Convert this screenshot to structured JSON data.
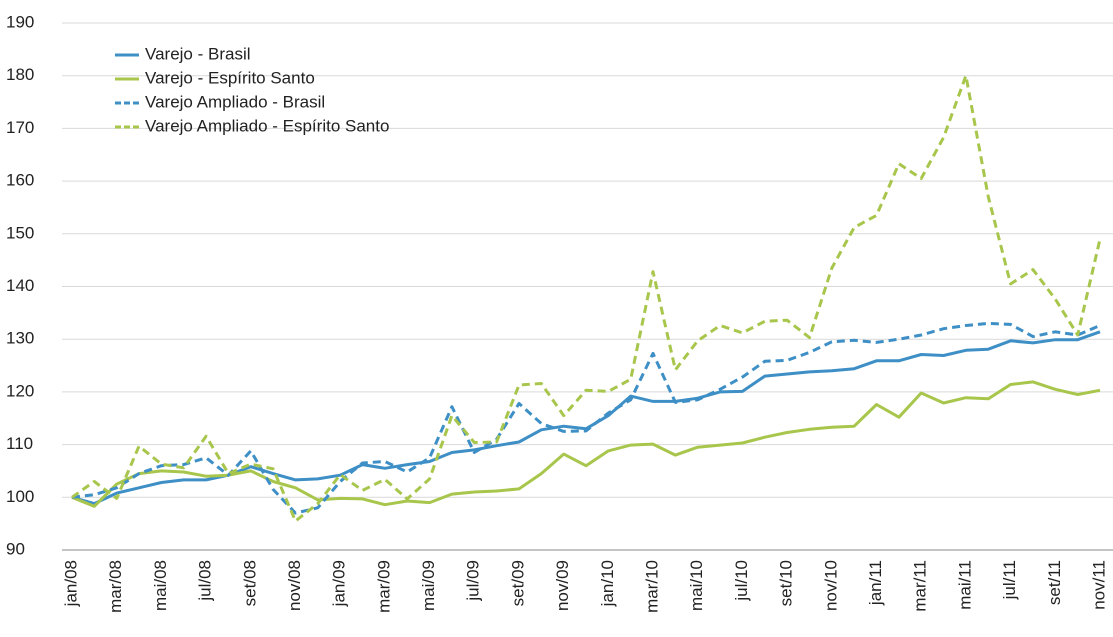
{
  "chart_data": {
    "type": "line",
    "categories": [
      "jan/08",
      null,
      "mar/08",
      null,
      "mai/08",
      null,
      "jul/08",
      null,
      "set/08",
      null,
      "nov/08",
      null,
      "jan/09",
      null,
      "mar/09",
      null,
      "mai/09",
      null,
      "jul/09",
      null,
      "set/09",
      null,
      "nov/09",
      null,
      "jan/10",
      null,
      "mar/10",
      null,
      "mai/10",
      null,
      "jul/10",
      null,
      "set/10",
      null,
      "nov/10",
      null,
      "jan/11",
      null,
      "mar/11",
      null,
      "mai/11",
      null,
      "jul/11",
      null,
      "set/11",
      null,
      "nov/11"
    ],
    "series": [
      {
        "name": "Varejo - Brasil",
        "color": "#3d8fc6",
        "line_style": "solid",
        "values": [
          100,
          98.8,
          100.8,
          101.8,
          102.8,
          103.3,
          103.3,
          104.2,
          105.8,
          104.5,
          103.3,
          103.5,
          104.2,
          106.2,
          105.5,
          106.2,
          106.8,
          108.5,
          109,
          109.8,
          110.5,
          112.8,
          113.5,
          113,
          115.5,
          119.2,
          118.2,
          118.2,
          118.8,
          120,
          120.1,
          123,
          123.4,
          123.8,
          124,
          124.4,
          125.9,
          125.9,
          127.1,
          126.9,
          127.9,
          128.1,
          129.7,
          129.3,
          129.9,
          129.9,
          131.4
        ]
      },
      {
        "name": "Varejo - Espírito Santo",
        "color": "#a8c64c",
        "line_style": "solid",
        "values": [
          100,
          98.3,
          102.5,
          104.5,
          105,
          104.8,
          104,
          104.2,
          105,
          103,
          101.8,
          99.5,
          99.8,
          99.7,
          98.6,
          99.3,
          99,
          100.6,
          101,
          101.2,
          101.6,
          104.5,
          108.2,
          106,
          108.8,
          109.9,
          110.1,
          108,
          109.5,
          109.9,
          110.3,
          111.4,
          112.3,
          112.9,
          113.3,
          113.5,
          117.6,
          115.2,
          119.8,
          117.9,
          118.9,
          118.7,
          121.4,
          121.9,
          120.5,
          119.5,
          120.3
        ]
      },
      {
        "name": "Varejo Ampliado - Brasil",
        "color": "#3d8fc6",
        "line_style": "dashed",
        "values": [
          100,
          100.5,
          101.8,
          104.5,
          106,
          106.2,
          107.5,
          104.2,
          108.8,
          101.5,
          97,
          98,
          103,
          106.5,
          106.8,
          104.8,
          107.5,
          117.2,
          108.5,
          111,
          117.8,
          114,
          112.5,
          112.6,
          116,
          118.5,
          127.3,
          118,
          118.5,
          120.5,
          122.8,
          125.8,
          126,
          127.5,
          129.5,
          129.8,
          129.4,
          130,
          130.8,
          132,
          132.6,
          133,
          132.8,
          130.5,
          131.4,
          130.8,
          132.6
        ]
      },
      {
        "name": "Varejo Ampliado - Espírito Santo",
        "color": "#a8c64c",
        "line_style": "dashed",
        "values": [
          100,
          103,
          99.8,
          109.7,
          106.3,
          105.6,
          111.6,
          104.5,
          106.3,
          105.4,
          95.5,
          98.8,
          104.3,
          101.3,
          103.4,
          99.7,
          103.5,
          115.5,
          110.4,
          110.5,
          121.3,
          121.6,
          115.5,
          120.3,
          120.1,
          122.4,
          142.8,
          124.2,
          129.7,
          132.6,
          131.2,
          133.4,
          133.6,
          130.3,
          143.5,
          151.2,
          153.5,
          163.3,
          160.5,
          168.3,
          180,
          157,
          140.5,
          143.2,
          137.6,
          130.8,
          149
        ]
      }
    ],
    "ylim": [
      90,
      190
    ],
    "yticks": [
      90,
      100,
      110,
      120,
      130,
      140,
      150,
      160,
      170,
      180,
      190
    ],
    "grid": true,
    "legend": "top-left"
  }
}
